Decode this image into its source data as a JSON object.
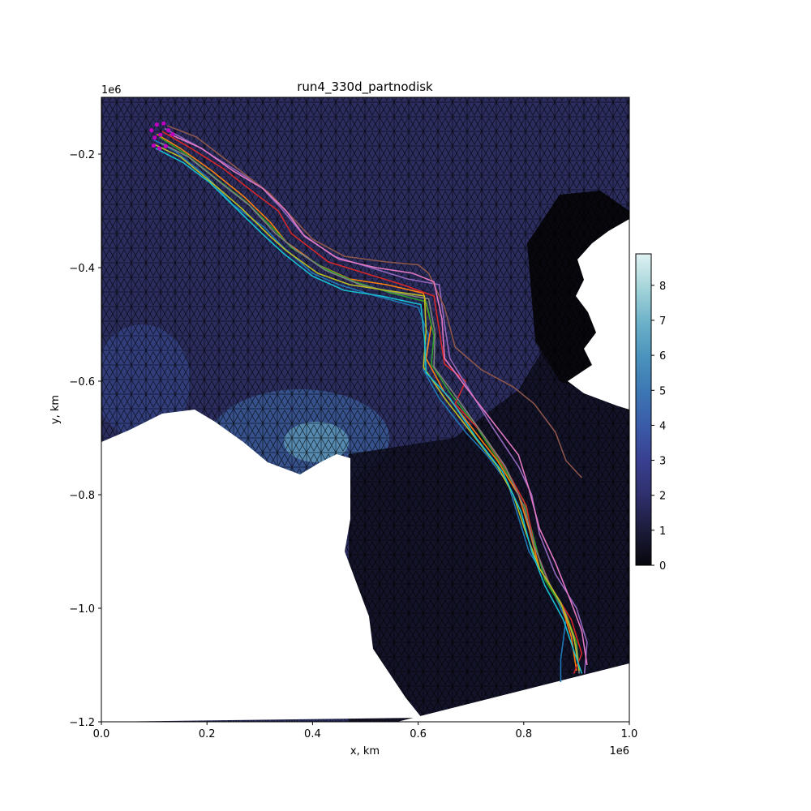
{
  "chart_data": {
    "type": "line",
    "title": "run4_330d_partnodisk",
    "xlabel": "x, km",
    "ylabel": "y, km",
    "x_offset_text": "1e6",
    "y_offset_text": "1e6",
    "xlim": [
      0,
      1.0
    ],
    "ylim": [
      -1.2,
      -0.1
    ],
    "x_ticks": [
      0.0,
      0.2,
      0.4,
      0.6,
      0.8,
      1.0
    ],
    "x_tick_labels": [
      "0.0",
      "0.2",
      "0.4",
      "0.6",
      "0.8",
      "1.0"
    ],
    "y_ticks": [
      -0.2,
      -0.4,
      -0.6,
      -0.8,
      -1.0,
      -1.2
    ],
    "y_tick_labels": [
      "−0.2",
      "−0.4",
      "−0.6",
      "−0.8",
      "−1.0",
      "−1.2"
    ],
    "grid": false,
    "background": "triangular mesh colored by magnitude (icefire-like colormap), land masked white",
    "colorbar": {
      "range": [
        0,
        8.9
      ],
      "ticks": [
        0,
        1,
        2,
        3,
        4,
        5,
        6,
        7,
        8
      ],
      "tick_labels": [
        "0",
        "1",
        "2",
        "3",
        "4",
        "5",
        "6",
        "7",
        "8"
      ],
      "colors": [
        "#07070d",
        "#1b1b3a",
        "#2e2f6b",
        "#393f8f",
        "#3a5aa8",
        "#3d76b3",
        "#4a92bd",
        "#6cb1c9",
        "#a3d4d9",
        "#e0f2f2"
      ]
    },
    "start_markers": [
      [
        0.095,
        -0.158
      ],
      [
        0.105,
        -0.148
      ],
      [
        0.118,
        -0.146
      ],
      [
        0.101,
        -0.171
      ],
      [
        0.112,
        -0.166
      ],
      [
        0.127,
        -0.158
      ],
      [
        0.099,
        -0.185
      ],
      [
        0.11,
        -0.19
      ],
      [
        0.122,
        -0.186
      ],
      [
        0.135,
        -0.165
      ]
    ],
    "start_marker_color": "#c000c0",
    "series": [
      {
        "color": "#1f77b4",
        "points": [
          [
            0.1,
            -0.175
          ],
          [
            0.14,
            -0.195
          ],
          [
            0.2,
            -0.24
          ],
          [
            0.25,
            -0.29
          ],
          [
            0.31,
            -0.33
          ],
          [
            0.34,
            -0.36
          ],
          [
            0.4,
            -0.41
          ],
          [
            0.45,
            -0.43
          ],
          [
            0.52,
            -0.45
          ],
          [
            0.6,
            -0.47
          ],
          [
            0.62,
            -0.52
          ],
          [
            0.61,
            -0.58
          ],
          [
            0.64,
            -0.63
          ],
          [
            0.69,
            -0.69
          ],
          [
            0.73,
            -0.73
          ],
          [
            0.77,
            -0.78
          ],
          [
            0.79,
            -0.84
          ],
          [
            0.81,
            -0.9
          ],
          [
            0.85,
            -0.96
          ],
          [
            0.88,
            -1.02
          ],
          [
            0.87,
            -1.09
          ],
          [
            0.87,
            -1.13
          ]
        ]
      },
      {
        "color": "#ff7f0e",
        "points": [
          [
            0.105,
            -0.165
          ],
          [
            0.15,
            -0.19
          ],
          [
            0.21,
            -0.23
          ],
          [
            0.27,
            -0.275
          ],
          [
            0.32,
            -0.32
          ],
          [
            0.35,
            -0.355
          ],
          [
            0.41,
            -0.395
          ],
          [
            0.47,
            -0.42
          ],
          [
            0.54,
            -0.43
          ],
          [
            0.61,
            -0.445
          ],
          [
            0.625,
            -0.5
          ],
          [
            0.615,
            -0.56
          ],
          [
            0.65,
            -0.62
          ],
          [
            0.7,
            -0.68
          ],
          [
            0.75,
            -0.74
          ],
          [
            0.79,
            -0.8
          ],
          [
            0.81,
            -0.86
          ],
          [
            0.83,
            -0.93
          ],
          [
            0.87,
            -0.99
          ],
          [
            0.89,
            -1.05
          ],
          [
            0.9,
            -1.11
          ]
        ]
      },
      {
        "color": "#2ca02c",
        "points": [
          [
            0.11,
            -0.17
          ],
          [
            0.16,
            -0.2
          ],
          [
            0.22,
            -0.245
          ],
          [
            0.275,
            -0.285
          ],
          [
            0.33,
            -0.335
          ],
          [
            0.36,
            -0.365
          ],
          [
            0.42,
            -0.4
          ],
          [
            0.48,
            -0.425
          ],
          [
            0.55,
            -0.445
          ],
          [
            0.615,
            -0.46
          ],
          [
            0.63,
            -0.52
          ],
          [
            0.625,
            -0.57
          ],
          [
            0.66,
            -0.62
          ],
          [
            0.71,
            -0.68
          ],
          [
            0.76,
            -0.75
          ],
          [
            0.8,
            -0.81
          ],
          [
            0.82,
            -0.88
          ],
          [
            0.84,
            -0.95
          ],
          [
            0.88,
            -1.01
          ],
          [
            0.9,
            -1.06
          ],
          [
            0.905,
            -1.11
          ]
        ]
      },
      {
        "color": "#d62728",
        "points": [
          [
            0.115,
            -0.16
          ],
          [
            0.17,
            -0.19
          ],
          [
            0.23,
            -0.225
          ],
          [
            0.285,
            -0.265
          ],
          [
            0.335,
            -0.3
          ],
          [
            0.36,
            -0.34
          ],
          [
            0.43,
            -0.39
          ],
          [
            0.5,
            -0.41
          ],
          [
            0.57,
            -0.43
          ],
          [
            0.63,
            -0.45
          ],
          [
            0.64,
            -0.51
          ],
          [
            0.65,
            -0.57
          ],
          [
            0.69,
            -0.6
          ],
          [
            0.67,
            -0.64
          ],
          [
            0.72,
            -0.69
          ],
          [
            0.77,
            -0.76
          ],
          [
            0.805,
            -0.82
          ],
          [
            0.82,
            -0.89
          ],
          [
            0.85,
            -0.96
          ],
          [
            0.89,
            -1.02
          ],
          [
            0.91,
            -1.08
          ],
          [
            0.895,
            -1.115
          ]
        ]
      },
      {
        "color": "#9467bd",
        "points": [
          [
            0.12,
            -0.155
          ],
          [
            0.18,
            -0.185
          ],
          [
            0.24,
            -0.22
          ],
          [
            0.3,
            -0.255
          ],
          [
            0.345,
            -0.3
          ],
          [
            0.38,
            -0.34
          ],
          [
            0.44,
            -0.38
          ],
          [
            0.51,
            -0.4
          ],
          [
            0.58,
            -0.42
          ],
          [
            0.64,
            -0.43
          ],
          [
            0.65,
            -0.5
          ],
          [
            0.66,
            -0.56
          ],
          [
            0.7,
            -0.62
          ],
          [
            0.74,
            -0.68
          ],
          [
            0.79,
            -0.75
          ],
          [
            0.815,
            -0.8
          ],
          [
            0.83,
            -0.87
          ],
          [
            0.86,
            -0.94
          ],
          [
            0.9,
            -1.0
          ],
          [
            0.92,
            -1.06
          ],
          [
            0.915,
            -1.115
          ]
        ]
      },
      {
        "color": "#8c564b",
        "points": [
          [
            0.125,
            -0.15
          ],
          [
            0.18,
            -0.17
          ],
          [
            0.25,
            -0.22
          ],
          [
            0.32,
            -0.27
          ],
          [
            0.36,
            -0.31
          ],
          [
            0.4,
            -0.35
          ],
          [
            0.46,
            -0.38
          ],
          [
            0.54,
            -0.39
          ],
          [
            0.6,
            -0.395
          ],
          [
            0.62,
            -0.41
          ],
          [
            0.65,
            -0.47
          ],
          [
            0.67,
            -0.54
          ],
          [
            0.72,
            -0.58
          ],
          [
            0.78,
            -0.61
          ],
          [
            0.82,
            -0.64
          ],
          [
            0.86,
            -0.69
          ],
          [
            0.88,
            -0.74
          ],
          [
            0.91,
            -0.77
          ]
        ]
      },
      {
        "color": "#e377c2",
        "points": [
          [
            0.13,
            -0.165
          ],
          [
            0.19,
            -0.19
          ],
          [
            0.25,
            -0.23
          ],
          [
            0.305,
            -0.26
          ],
          [
            0.35,
            -0.3
          ],
          [
            0.385,
            -0.345
          ],
          [
            0.45,
            -0.385
          ],
          [
            0.52,
            -0.4
          ],
          [
            0.59,
            -0.41
          ],
          [
            0.63,
            -0.425
          ],
          [
            0.645,
            -0.49
          ],
          [
            0.65,
            -0.56
          ],
          [
            0.69,
            -0.61
          ],
          [
            0.74,
            -0.67
          ],
          [
            0.79,
            -0.73
          ],
          [
            0.81,
            -0.79
          ],
          [
            0.83,
            -0.86
          ],
          [
            0.86,
            -0.92
          ],
          [
            0.89,
            -0.99
          ],
          [
            0.91,
            -1.04
          ],
          [
            0.92,
            -1.1
          ]
        ]
      },
      {
        "color": "#7f7f7f",
        "points": [
          [
            0.112,
            -0.18
          ],
          [
            0.165,
            -0.205
          ],
          [
            0.225,
            -0.25
          ],
          [
            0.28,
            -0.29
          ],
          [
            0.33,
            -0.34
          ],
          [
            0.37,
            -0.37
          ],
          [
            0.425,
            -0.405
          ],
          [
            0.49,
            -0.43
          ],
          [
            0.56,
            -0.445
          ],
          [
            0.62,
            -0.455
          ],
          [
            0.632,
            -0.515
          ],
          [
            0.63,
            -0.575
          ],
          [
            0.67,
            -0.625
          ],
          [
            0.72,
            -0.69
          ],
          [
            0.765,
            -0.75
          ],
          [
            0.8,
            -0.82
          ],
          [
            0.82,
            -0.89
          ],
          [
            0.845,
            -0.95
          ],
          [
            0.88,
            -1.01
          ],
          [
            0.9,
            -1.07
          ],
          [
            0.905,
            -1.115
          ]
        ]
      },
      {
        "color": "#bcbd22",
        "points": [
          [
            0.098,
            -0.182
          ],
          [
            0.15,
            -0.205
          ],
          [
            0.215,
            -0.255
          ],
          [
            0.265,
            -0.295
          ],
          [
            0.32,
            -0.345
          ],
          [
            0.35,
            -0.37
          ],
          [
            0.41,
            -0.41
          ],
          [
            0.47,
            -0.43
          ],
          [
            0.54,
            -0.44
          ],
          [
            0.612,
            -0.45
          ],
          [
            0.615,
            -0.51
          ],
          [
            0.61,
            -0.575
          ],
          [
            0.65,
            -0.63
          ],
          [
            0.7,
            -0.69
          ],
          [
            0.75,
            -0.75
          ],
          [
            0.78,
            -0.8
          ],
          [
            0.805,
            -0.87
          ],
          [
            0.83,
            -0.93
          ],
          [
            0.87,
            -0.99
          ],
          [
            0.895,
            -1.05
          ],
          [
            0.905,
            -1.11
          ]
        ]
      },
      {
        "color": "#17becf",
        "points": [
          [
            0.103,
            -0.19
          ],
          [
            0.155,
            -0.215
          ],
          [
            0.205,
            -0.25
          ],
          [
            0.26,
            -0.3
          ],
          [
            0.31,
            -0.345
          ],
          [
            0.345,
            -0.375
          ],
          [
            0.4,
            -0.415
          ],
          [
            0.46,
            -0.44
          ],
          [
            0.53,
            -0.45
          ],
          [
            0.605,
            -0.465
          ],
          [
            0.612,
            -0.525
          ],
          [
            0.615,
            -0.585
          ],
          [
            0.66,
            -0.63
          ],
          [
            0.71,
            -0.7
          ],
          [
            0.76,
            -0.76
          ],
          [
            0.795,
            -0.83
          ],
          [
            0.815,
            -0.9
          ],
          [
            0.84,
            -0.96
          ],
          [
            0.875,
            -1.02
          ],
          [
            0.895,
            -1.075
          ],
          [
            0.91,
            -1.115
          ]
        ]
      }
    ]
  }
}
